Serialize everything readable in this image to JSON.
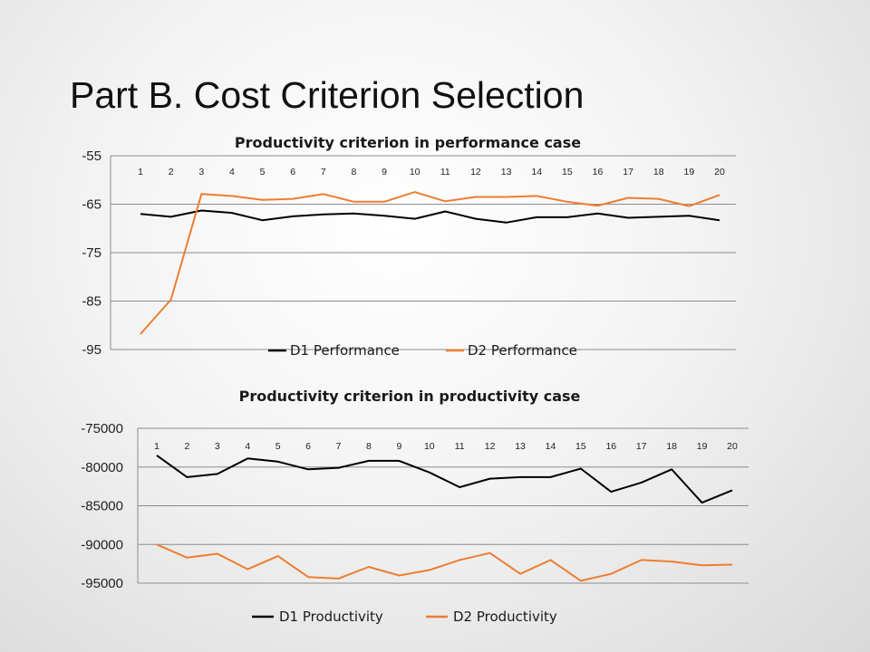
{
  "slide_title": "Part B. Cost Criterion Selection",
  "chart_data": [
    {
      "type": "line",
      "title": "Productivity  criterion in performance case",
      "xlabel": "",
      "ylabel": "",
      "categories": [
        "1",
        "2",
        "3",
        "4",
        "5",
        "6",
        "7",
        "8",
        "9",
        "10",
        "11",
        "12",
        "13",
        "14",
        "15",
        "16",
        "17",
        "18",
        "19",
        "20"
      ],
      "ylim": [
        -95,
        -55
      ],
      "yticks": [
        "-55",
        "-65",
        "-75",
        "-85",
        "-95"
      ],
      "grid": true,
      "legend": "bottom",
      "series": [
        {
          "name": "D1 Performance",
          "color": "#000000",
          "values": [
            -67,
            -67.6,
            -66.3,
            -66.8,
            -68.3,
            -67.5,
            -67.1,
            -66.9,
            -67.4,
            -68,
            -66.5,
            -68,
            -68.8,
            -67.7,
            -67.7,
            -66.9,
            -67.8,
            -67.6,
            -67.4,
            -68.3
          ]
        },
        {
          "name": "D2 Performance",
          "color": "#ED7D31",
          "values": [
            -91.8,
            -84.7,
            -62.9,
            -63.3,
            -64.1,
            -63.9,
            -62.9,
            -64.5,
            -64.5,
            -62.5,
            -64.4,
            -63.5,
            -63.5,
            -63.3,
            -64.5,
            -65.3,
            -63.7,
            -63.9,
            -65.4,
            -63.1
          ]
        }
      ]
    },
    {
      "type": "line",
      "title": "Productivity criterion in productivity case",
      "xlabel": "",
      "ylabel": "",
      "categories": [
        "1",
        "2",
        "3",
        "4",
        "5",
        "6",
        "7",
        "8",
        "9",
        "10",
        "11",
        "12",
        "13",
        "14",
        "15",
        "16",
        "17",
        "18",
        "19",
        "20"
      ],
      "ylim": [
        -95000,
        -75000
      ],
      "yticks": [
        "-75000",
        "-80000",
        "-85000",
        "-90000",
        "-95000"
      ],
      "grid": true,
      "legend": "bottom",
      "series": [
        {
          "name": "D1 Productivity",
          "color": "#000000",
          "values": [
            -78500,
            -81300,
            -80900,
            -78900,
            -79300,
            -80300,
            -80100,
            -79200,
            -79200,
            -80700,
            -82600,
            -81500,
            -81300,
            -81300,
            -80200,
            -83200,
            -82000,
            -80300,
            -84600,
            -83000
          ]
        },
        {
          "name": "D2 Productivity",
          "color": "#ED7D31",
          "values": [
            -90000,
            -91700,
            -91200,
            -93200,
            -91500,
            -94200,
            -94400,
            -92900,
            -94000,
            -93300,
            -92000,
            -91100,
            -93800,
            -92000,
            -94700,
            -93800,
            -92000,
            -92200,
            -92700,
            -92600
          ]
        }
      ]
    }
  ]
}
